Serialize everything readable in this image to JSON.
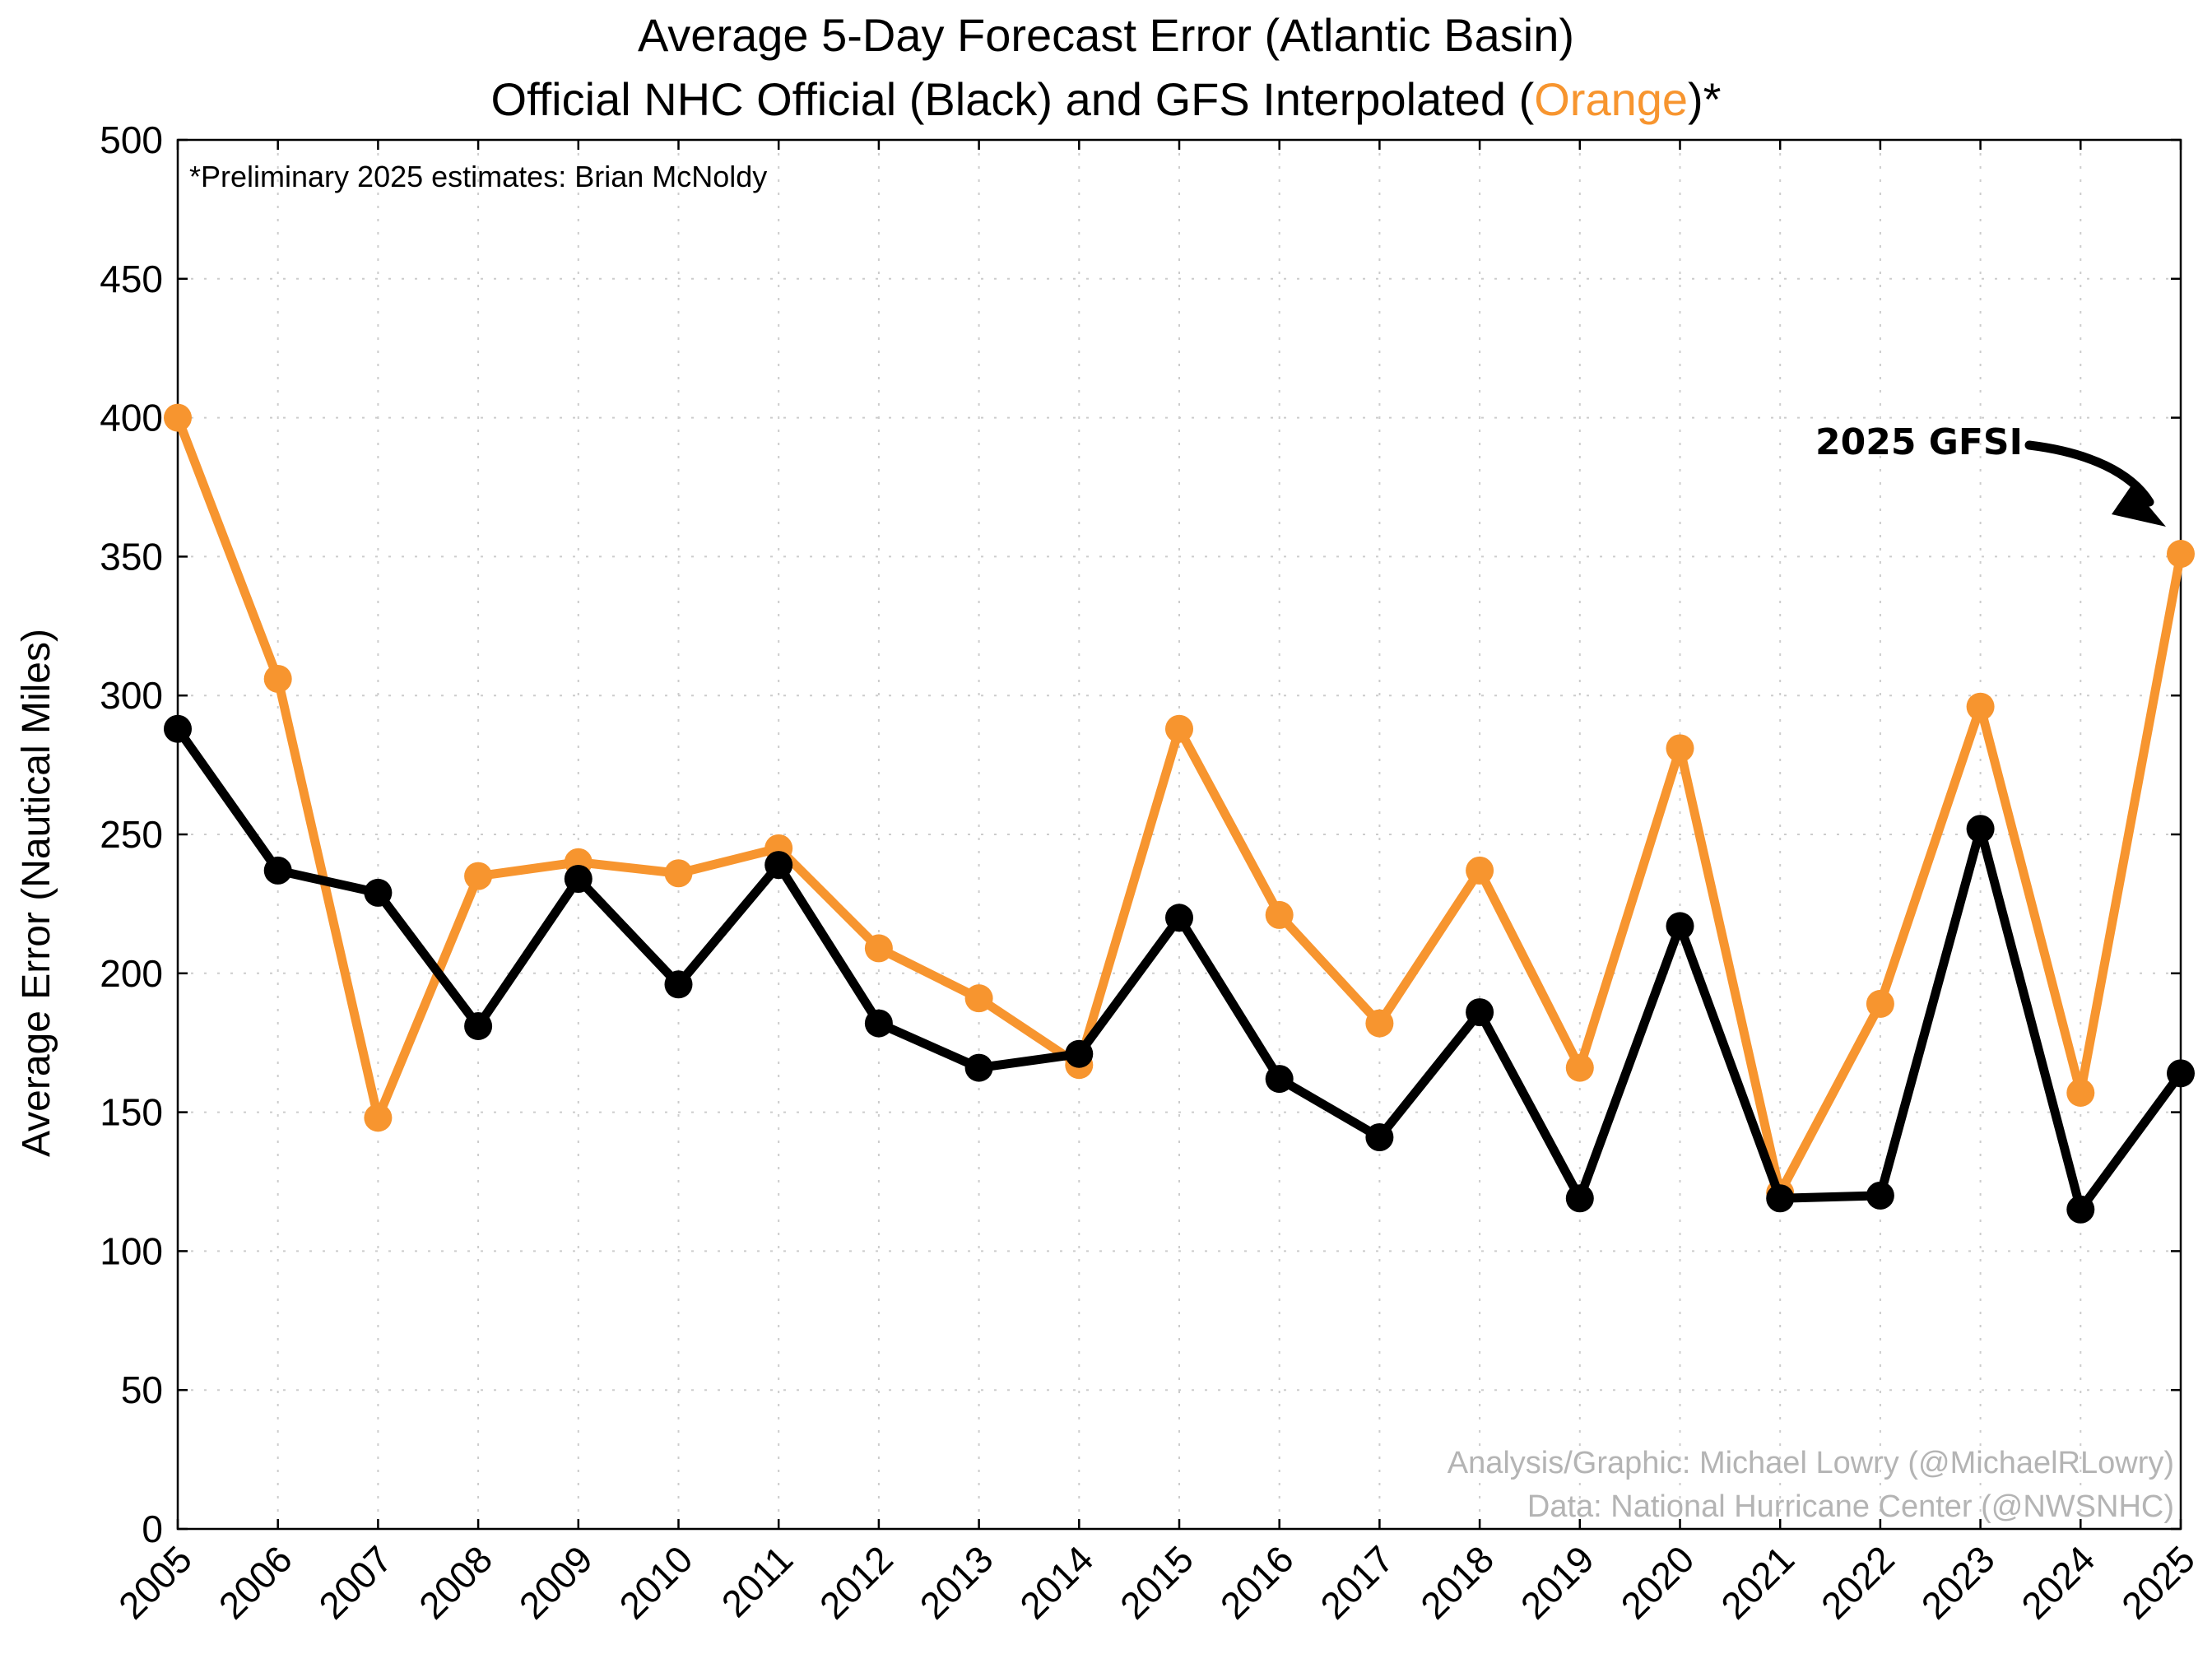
{
  "chart_data": {
    "type": "line",
    "title_line1": "Average 5-Day Forecast Error (Atlantic Basin)",
    "title_line2_prefix": "Official NHC Official (Black) and GFS Interpolated (",
    "title_line2_highlight": "Orange",
    "title_line2_suffix": ")*",
    "ylabel": "Average Error (Nautical Miles)",
    "xlabel": "",
    "ylim": [
      0,
      500
    ],
    "yticks": [
      0,
      50,
      100,
      150,
      200,
      250,
      300,
      350,
      400,
      450,
      500
    ],
    "x": [
      "2005",
      "2006",
      "2007",
      "2008",
      "2009",
      "2010",
      "2011",
      "2012",
      "2013",
      "2014",
      "2015",
      "2016",
      "2017",
      "2018",
      "2019",
      "2020",
      "2021",
      "2022",
      "2023",
      "2024",
      "2025"
    ],
    "grid": true,
    "series": [
      {
        "key": "gfsi",
        "color": "#f7952f",
        "values": [
          400,
          306,
          148,
          235,
          240,
          236,
          245,
          209,
          191,
          167,
          288,
          221,
          182,
          237,
          166,
          281,
          121,
          189,
          296,
          157,
          351
        ]
      },
      {
        "key": "official",
        "color": "#000000",
        "values": [
          288,
          237,
          229,
          181,
          234,
          196,
          239,
          182,
          166,
          171,
          220,
          162,
          141,
          186,
          119,
          217,
          119,
          120,
          252,
          115,
          164
        ]
      }
    ],
    "note": "*Preliminary 2025 estimates: Brian McNoldy",
    "credits": [
      "Analysis/Graphic: Michael Lowry (@MichaelRLowry)",
      "Data: National Hurricane Center (@NWSNHC)"
    ],
    "annotation": {
      "text": "2025 GFSI",
      "target_x": "2025",
      "target_series": "gfsi"
    }
  }
}
